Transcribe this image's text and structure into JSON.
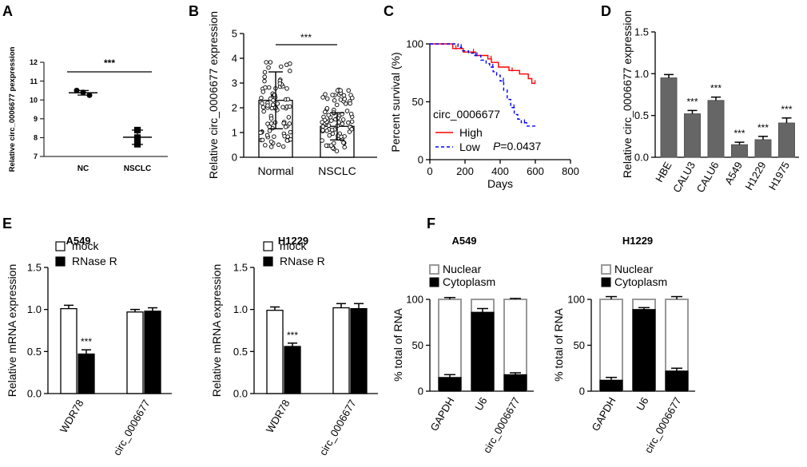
{
  "figure": {
    "panels": {
      "A": {
        "letter": "A"
      },
      "B": {
        "letter": "B"
      },
      "C": {
        "letter": "C"
      },
      "D": {
        "letter": "D"
      },
      "E": {
        "letter": "E"
      },
      "F": {
        "letter": "F"
      }
    }
  },
  "chart_data": [
    {
      "id": "A",
      "type": "scatter",
      "title": "",
      "xlabel": "",
      "ylabel": "Relative circ_0006677 pexpression",
      "categories": [
        "NC",
        "NSCLC"
      ],
      "ylim": [
        7,
        12
      ],
      "yticks": [
        "7",
        "8",
        "9",
        "10",
        "11",
        "12"
      ],
      "points": [
        [
          10.5,
          10.4,
          10.25
        ],
        [
          8.4,
          8.0,
          7.65
        ]
      ],
      "means": [
        10.38,
        8.02
      ],
      "sds": [
        0.12,
        0.38
      ],
      "significance": "***"
    },
    {
      "id": "B",
      "type": "bar",
      "xlabel": "",
      "ylabel": "Relative circ_0006677 expression",
      "categories": [
        "Normal",
        "NSCLC"
      ],
      "values": [
        2.3,
        1.25
      ],
      "errors": [
        1.15,
        0.55
      ],
      "ylim": [
        0,
        5
      ],
      "yticks": [
        "0",
        "1",
        "2",
        "3",
        "4",
        "5"
      ],
      "significance": "***"
    },
    {
      "id": "C",
      "type": "line",
      "xlabel": "Days",
      "ylabel": "Percent survival (%)",
      "xlim": [
        0,
        800
      ],
      "ylim": [
        0,
        100
      ],
      "xticks": [
        "0",
        "200",
        "400",
        "600",
        "800"
      ],
      "yticks": [
        "0",
        "50",
        "100"
      ],
      "legend_title": "circ_0006677",
      "pvalue_prefix": "P",
      "pvalue_suffix": "=0.0437",
      "series": [
        {
          "name": "High",
          "color": "#ff0000",
          "dash": false,
          "x": [
            0,
            110,
            130,
            170,
            190,
            230,
            260,
            300,
            330,
            350,
            390,
            450,
            510,
            560,
            580,
            600
          ],
          "y": [
            100,
            100,
            96,
            96,
            93,
            93,
            90,
            90,
            87,
            84,
            80,
            77,
            74,
            70,
            66,
            66
          ]
        },
        {
          "name": "Low",
          "color": "#0000ff",
          "dash": true,
          "x": [
            0,
            100,
            160,
            180,
            220,
            250,
            290,
            320,
            340,
            360,
            380,
            400,
            420,
            440,
            460,
            480,
            500,
            520,
            550,
            600
          ],
          "y": [
            100,
            100,
            97,
            94,
            92,
            90,
            86,
            83,
            80,
            76,
            73,
            68,
            60,
            52,
            45,
            39,
            35,
            32,
            29,
            29
          ]
        }
      ]
    },
    {
      "id": "D",
      "type": "bar",
      "ylabel": "Relative circ_0006677 expression",
      "categories": [
        "HBE",
        "CALU3",
        "CALU6",
        "A549",
        "H1229",
        "H1975"
      ],
      "values": [
        0.95,
        0.52,
        0.68,
        0.15,
        0.21,
        0.41
      ],
      "errors": [
        0.04,
        0.04,
        0.04,
        0.03,
        0.04,
        0.06
      ],
      "significance": [
        "",
        "***",
        "***",
        "***",
        "***",
        "***"
      ],
      "ylim": [
        0,
        1.5
      ],
      "yticks": [
        "0.0",
        "0.5",
        "1.0",
        "1.5"
      ]
    },
    {
      "id": "E1",
      "type": "bar",
      "title": "A549",
      "ylabel": "Relative mRNA expression",
      "categories": [
        "WDR78",
        "circ_0006677"
      ],
      "series": [
        {
          "name": "mock",
          "values": [
            1.01,
            0.97
          ],
          "errors": [
            0.04,
            0.03
          ]
        },
        {
          "name": "RNase R",
          "values": [
            0.47,
            0.98
          ],
          "errors": [
            0.05,
            0.04
          ]
        }
      ],
      "significance": [
        "***",
        ""
      ],
      "ylim": [
        0,
        1.5
      ],
      "yticks": [
        "0.0",
        "0.5",
        "1.0",
        "1.5"
      ]
    },
    {
      "id": "E2",
      "type": "bar",
      "title": "H1229",
      "ylabel": "Relative mRNA expression",
      "categories": [
        "WDR78",
        "circ_0006677"
      ],
      "series": [
        {
          "name": "mock",
          "values": [
            0.99,
            1.02
          ],
          "errors": [
            0.04,
            0.05
          ]
        },
        {
          "name": "RNase R",
          "values": [
            0.56,
            1.01
          ],
          "errors": [
            0.04,
            0.06
          ]
        }
      ],
      "significance": [
        "***",
        ""
      ],
      "ylim": [
        0,
        1.5
      ],
      "yticks": [
        "0.0",
        "0.5",
        "1.0",
        "1.5"
      ]
    },
    {
      "id": "F1",
      "type": "bar",
      "title": "A549",
      "ylabel": "% total of RNA",
      "categories": [
        "GAPDH",
        "U6",
        "circ_0006677"
      ],
      "series": [
        {
          "name": "Cytoplasm",
          "values": [
            15,
            86,
            18
          ],
          "errors": [
            3,
            4,
            2
          ]
        },
        {
          "name": "Nuclear",
          "values": [
            85,
            14,
            82
          ],
          "errors": [
            2,
            0,
            1
          ]
        }
      ],
      "ylim": [
        0,
        100
      ],
      "yticks": [
        "0",
        "50",
        "100"
      ]
    },
    {
      "id": "F2",
      "type": "bar",
      "title": "H1229",
      "ylabel": "% total of RNA",
      "categories": [
        "GAPDH",
        "U6",
        "circ_0006677"
      ],
      "series": [
        {
          "name": "Cytoplasm",
          "values": [
            12,
            89,
            22
          ],
          "errors": [
            3,
            2,
            3
          ]
        },
        {
          "name": "Nuclear",
          "values": [
            88,
            11,
            78
          ],
          "errors": [
            3,
            0,
            3
          ]
        }
      ],
      "ylim": [
        0,
        100
      ],
      "yticks": [
        "0",
        "50",
        "100"
      ]
    }
  ]
}
